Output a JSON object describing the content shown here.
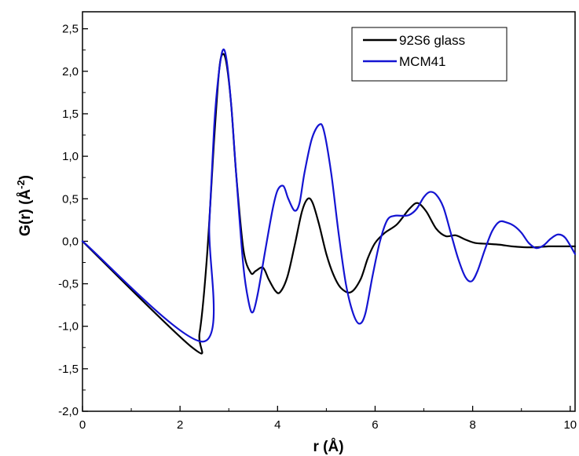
{
  "chart_data": {
    "type": "line",
    "xlabel": "r (Å)",
    "ylabel_main": "G(r) (Å",
    "ylabel_sup": "-2",
    "ylabel_close": ")",
    "xlim": [
      0,
      10.1
    ],
    "ylim": [
      -2.0,
      2.7
    ],
    "x_ticks": [
      0,
      2,
      4,
      6,
      8,
      10
    ],
    "x_tick_labels": [
      "0",
      "2",
      "4",
      "6",
      "8",
      "10"
    ],
    "y_ticks": [
      -2.0,
      -1.5,
      -1.0,
      -0.5,
      0.0,
      0.5,
      1.0,
      1.5,
      2.0,
      2.5
    ],
    "y_tick_labels": [
      "-2,0",
      "-1,5",
      "-1,0",
      "-0,5",
      "0,0",
      "0,5",
      "1,0",
      "1,5",
      "2,0",
      "2,5"
    ],
    "grid": false,
    "legend_position": "top-right",
    "series": [
      {
        "name": "92S6 glass",
        "color": "#000000",
        "x": [
          0,
          2.25,
          2.4,
          2.55,
          2.7,
          2.8,
          2.87,
          2.95,
          3.05,
          3.15,
          3.3,
          3.45,
          3.55,
          3.7,
          3.82,
          3.95,
          4.05,
          4.2,
          4.35,
          4.5,
          4.62,
          4.72,
          4.85,
          5.0,
          5.15,
          5.3,
          5.5,
          5.7,
          5.85,
          6.0,
          6.2,
          6.45,
          6.7,
          6.87,
          7.05,
          7.25,
          7.45,
          7.65,
          7.85,
          8.05,
          8.3,
          8.55,
          8.8,
          9.05,
          9.3,
          9.55,
          9.8,
          10.1
        ],
        "y": [
          0,
          -1.25,
          -1.08,
          -0.2,
          1.2,
          2.0,
          2.2,
          2.1,
          1.6,
          0.8,
          -0.1,
          -0.37,
          -0.35,
          -0.31,
          -0.45,
          -0.58,
          -0.6,
          -0.42,
          -0.05,
          0.35,
          0.5,
          0.45,
          0.2,
          -0.15,
          -0.4,
          -0.55,
          -0.6,
          -0.45,
          -0.2,
          -0.02,
          0.1,
          0.2,
          0.38,
          0.45,
          0.35,
          0.15,
          0.06,
          0.07,
          0.02,
          -0.02,
          -0.03,
          -0.04,
          -0.06,
          -0.07,
          -0.07,
          -0.06,
          -0.06,
          -0.06
        ]
      },
      {
        "name": "MCM41",
        "color": "#1414d2",
        "x": [
          0,
          2.48,
          2.6,
          2.7,
          2.78,
          2.87,
          2.95,
          3.05,
          3.15,
          3.3,
          3.42,
          3.5,
          3.6,
          3.75,
          3.9,
          4.0,
          4.12,
          4.22,
          4.35,
          4.45,
          4.55,
          4.7,
          4.85,
          4.95,
          5.1,
          5.25,
          5.4,
          5.55,
          5.68,
          5.8,
          5.95,
          6.1,
          6.25,
          6.4,
          6.55,
          6.7,
          6.85,
          7.0,
          7.12,
          7.25,
          7.4,
          7.55,
          7.7,
          7.85,
          7.98,
          8.1,
          8.25,
          8.4,
          8.55,
          8.7,
          8.85,
          9.0,
          9.15,
          9.3,
          9.45,
          9.6,
          9.75,
          9.9,
          10.1
        ],
        "y": [
          0,
          -1.18,
          0.2,
          1.35,
          1.9,
          2.24,
          2.15,
          1.6,
          0.8,
          -0.3,
          -0.75,
          -0.83,
          -0.6,
          -0.1,
          0.38,
          0.6,
          0.65,
          0.5,
          0.36,
          0.45,
          0.8,
          1.2,
          1.37,
          1.3,
          0.8,
          0.1,
          -0.5,
          -0.85,
          -0.97,
          -0.85,
          -0.4,
          0.0,
          0.25,
          0.3,
          0.3,
          0.31,
          0.38,
          0.52,
          0.58,
          0.55,
          0.4,
          0.1,
          -0.2,
          -0.42,
          -0.47,
          -0.35,
          -0.1,
          0.12,
          0.23,
          0.22,
          0.18,
          0.1,
          -0.02,
          -0.08,
          -0.05,
          0.03,
          0.08,
          0.04,
          -0.15
        ]
      }
    ]
  }
}
